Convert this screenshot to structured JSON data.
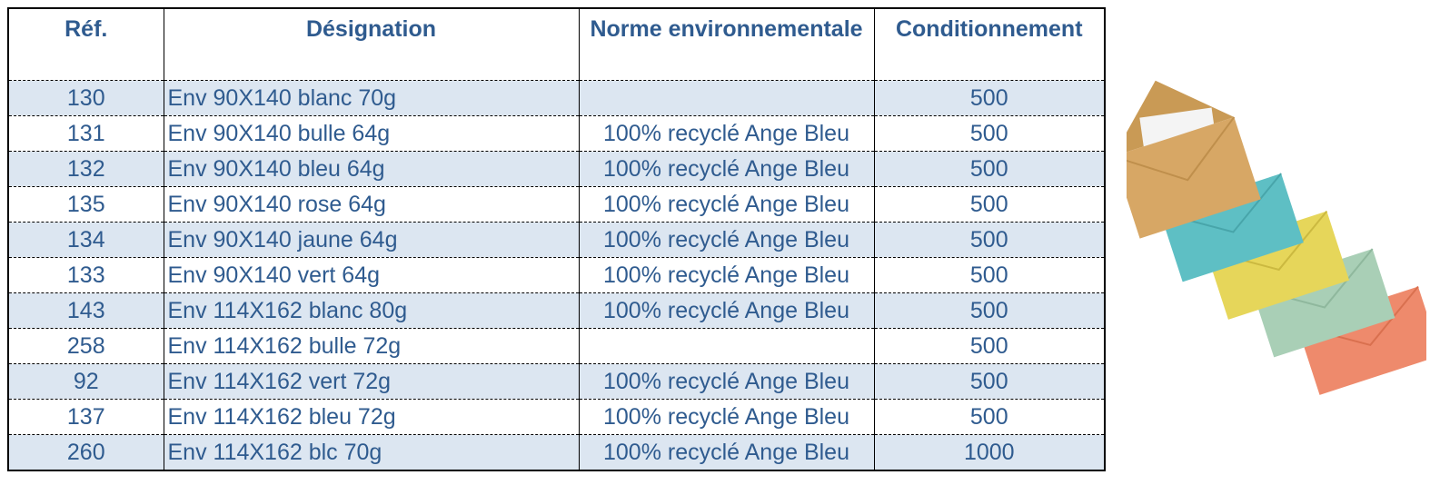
{
  "table": {
    "header": [
      "Réf.",
      "Désignation",
      "Norme environnementale",
      "Conditionnement"
    ],
    "rows": [
      [
        130,
        "Env 90X140 blanc 70g",
        null,
        500
      ],
      [
        131,
        "Env 90X140 bulle 64g",
        "100% recyclé Ange Bleu",
        500
      ],
      [
        132,
        "Env 90X140 bleu 64g",
        "100% recyclé Ange Bleu",
        500
      ],
      [
        135,
        "Env 90X140 rose 64g",
        "100% recyclé Ange Bleu",
        500
      ],
      [
        134,
        "Env 90X140 jaune 64g",
        "100% recyclé Ange Bleu",
        500
      ],
      [
        133,
        "Env 90X140 vert 64g",
        "100% recyclé Ange Bleu",
        500
      ],
      [
        143,
        "Env 114X162 blanc 80g",
        "100% recyclé Ange Bleu",
        500
      ],
      [
        258,
        "Env 114X162 bulle 72g",
        null,
        500
      ],
      [
        92,
        "Env 114X162 vert 72g",
        "100% recyclé Ange Bleu",
        500
      ],
      [
        137,
        "Env 114X162 bleu 72g",
        "100% recyclé Ange Bleu",
        500
      ],
      [
        260,
        "Env 114X162 blc 70g",
        "100% recyclé Ange Bleu",
        1000
      ]
    ]
  }
}
